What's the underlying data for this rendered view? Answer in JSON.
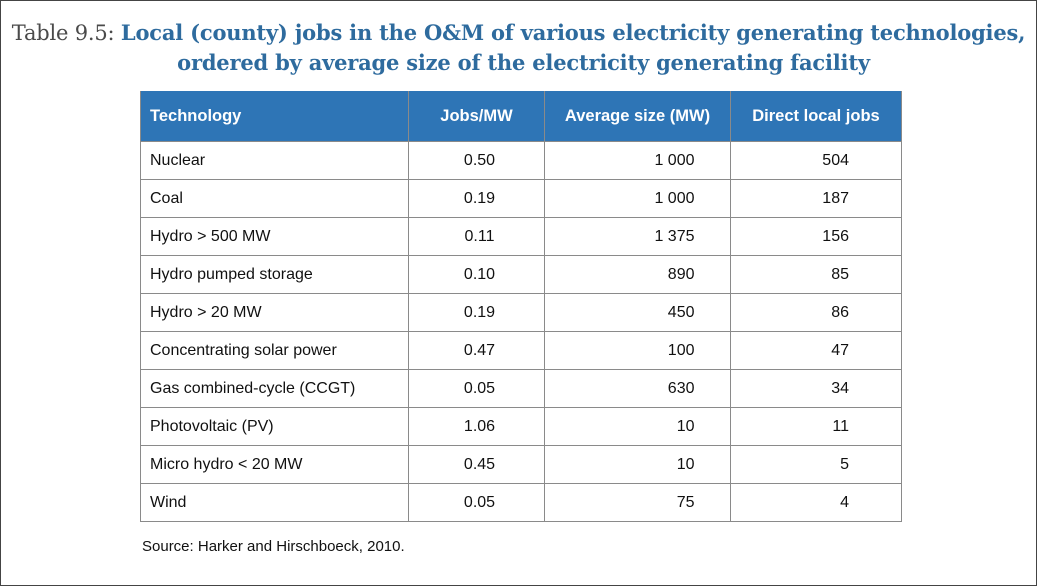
{
  "caption": {
    "label": "Table 9.5:",
    "title_line1": "Local (county) jobs in the O&M of various electricity generating technologies,",
    "title_line2": "ordered by average size of the electricity generating facility"
  },
  "table": {
    "headers": [
      "Technology",
      "Jobs/MW",
      "Average size (MW)",
      "Direct local jobs"
    ],
    "rows": [
      [
        "Nuclear",
        "0.50",
        "1 000",
        "504"
      ],
      [
        "Coal",
        "0.19",
        "1 000",
        "187"
      ],
      [
        "Hydro > 500 MW",
        "0.11",
        "1 375",
        "156"
      ],
      [
        "Hydro pumped storage",
        "0.10",
        "890",
        "85"
      ],
      [
        "Hydro > 20 MW",
        "0.19",
        "450",
        "86"
      ],
      [
        "Concentrating solar power",
        "0.47",
        "100",
        "47"
      ],
      [
        "Gas combined-cycle (CCGT)",
        "0.05",
        "630",
        "34"
      ],
      [
        "Photovoltaic (PV)",
        "1.06",
        "10",
        "11"
      ],
      [
        "Micro hydro < 20 MW",
        "0.45",
        "10",
        "5"
      ],
      [
        "Wind",
        "0.05",
        "75",
        "4"
      ]
    ]
  },
  "source": "Source: Harker and Hirschboeck, 2010.",
  "colors": {
    "header_bg": "#2e75b6",
    "title_blue": "#2e6b9e",
    "border": "#8a8a8a"
  }
}
